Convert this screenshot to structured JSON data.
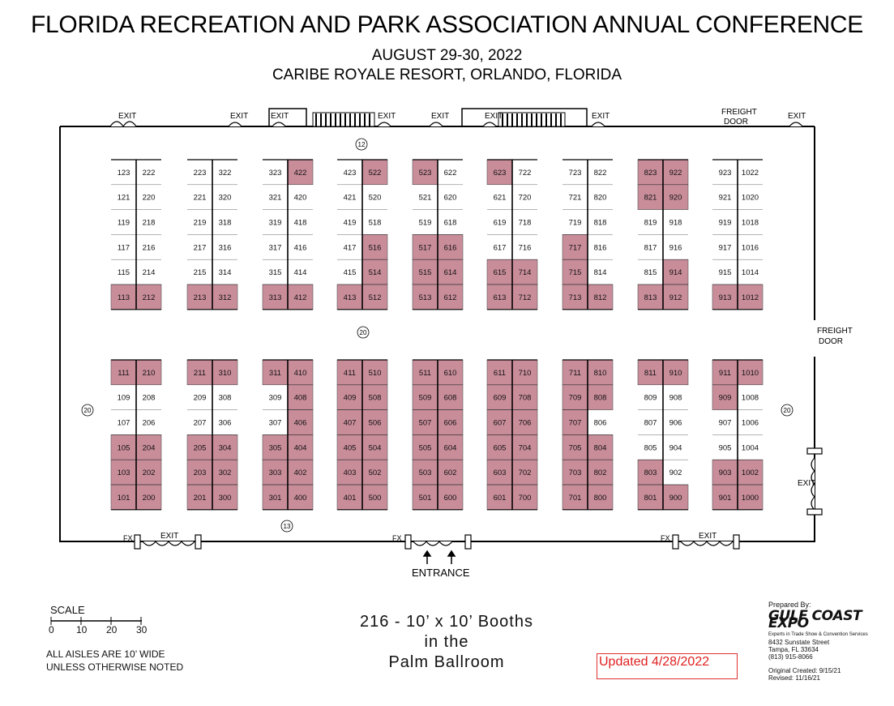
{
  "header": {
    "title": "FLORIDA RECREATION AND PARK ASSOCIATION ANNUAL CONFERENCE",
    "date": "AUGUST 29-30, 2022",
    "venue": "CARIBE ROYALE RESORT, ORLANDO, FLORIDA"
  },
  "colors": {
    "sold": "#c98d9a",
    "wall": "#000000"
  },
  "labels": {
    "exit": "EXIT",
    "freight_door": "FREIGHT DOOR",
    "freight_door_top": "FREIGHT",
    "freight_door_bottom": "DOOR",
    "fx": "FX",
    "entrance": "ENTRANCE",
    "aisle_12": "12",
    "aisle_20": "20",
    "aisle_13": "13"
  },
  "booths": [
    {
      "num": "123",
      "sold": false
    },
    {
      "num": "222",
      "sold": false
    },
    {
      "num": "121",
      "sold": false
    },
    {
      "num": "220",
      "sold": false
    },
    {
      "num": "119",
      "sold": false
    },
    {
      "num": "218",
      "sold": false
    },
    {
      "num": "117",
      "sold": false
    },
    {
      "num": "216",
      "sold": false
    },
    {
      "num": "115",
      "sold": false
    },
    {
      "num": "214",
      "sold": false
    },
    {
      "num": "113",
      "sold": true
    },
    {
      "num": "212",
      "sold": true
    },
    {
      "num": "223",
      "sold": false
    },
    {
      "num": "322",
      "sold": false
    },
    {
      "num": "221",
      "sold": false
    },
    {
      "num": "320",
      "sold": false
    },
    {
      "num": "219",
      "sold": false
    },
    {
      "num": "318",
      "sold": false
    },
    {
      "num": "217",
      "sold": false
    },
    {
      "num": "316",
      "sold": false
    },
    {
      "num": "215",
      "sold": false
    },
    {
      "num": "314",
      "sold": false
    },
    {
      "num": "213",
      "sold": true
    },
    {
      "num": "312",
      "sold": true
    },
    {
      "num": "323",
      "sold": false
    },
    {
      "num": "422",
      "sold": true
    },
    {
      "num": "321",
      "sold": false
    },
    {
      "num": "420",
      "sold": false
    },
    {
      "num": "319",
      "sold": false
    },
    {
      "num": "418",
      "sold": false
    },
    {
      "num": "317",
      "sold": false
    },
    {
      "num": "416",
      "sold": false
    },
    {
      "num": "315",
      "sold": false
    },
    {
      "num": "414",
      "sold": false
    },
    {
      "num": "313",
      "sold": true
    },
    {
      "num": "412",
      "sold": true
    },
    {
      "num": "423",
      "sold": false
    },
    {
      "num": "522",
      "sold": true
    },
    {
      "num": "421",
      "sold": false
    },
    {
      "num": "520",
      "sold": false
    },
    {
      "num": "419",
      "sold": false
    },
    {
      "num": "518",
      "sold": false
    },
    {
      "num": "417",
      "sold": false
    },
    {
      "num": "516",
      "sold": true
    },
    {
      "num": "415",
      "sold": false
    },
    {
      "num": "514",
      "sold": true
    },
    {
      "num": "413",
      "sold": true
    },
    {
      "num": "512",
      "sold": true
    },
    {
      "num": "523",
      "sold": true
    },
    {
      "num": "622",
      "sold": false
    },
    {
      "num": "521",
      "sold": false
    },
    {
      "num": "620",
      "sold": false
    },
    {
      "num": "519",
      "sold": false
    },
    {
      "num": "618",
      "sold": false
    },
    {
      "num": "517",
      "sold": true
    },
    {
      "num": "616",
      "sold": true
    },
    {
      "num": "515",
      "sold": true
    },
    {
      "num": "614",
      "sold": true
    },
    {
      "num": "513",
      "sold": true
    },
    {
      "num": "612",
      "sold": true
    },
    {
      "num": "623",
      "sold": true
    },
    {
      "num": "722",
      "sold": false
    },
    {
      "num": "621",
      "sold": false
    },
    {
      "num": "720",
      "sold": false
    },
    {
      "num": "619",
      "sold": false
    },
    {
      "num": "718",
      "sold": false
    },
    {
      "num": "617",
      "sold": false
    },
    {
      "num": "716",
      "sold": false
    },
    {
      "num": "615",
      "sold": true
    },
    {
      "num": "714",
      "sold": true
    },
    {
      "num": "613",
      "sold": true
    },
    {
      "num": "712",
      "sold": true
    },
    {
      "num": "723",
      "sold": false
    },
    {
      "num": "822",
      "sold": false
    },
    {
      "num": "721",
      "sold": false
    },
    {
      "num": "820",
      "sold": false
    },
    {
      "num": "719",
      "sold": false
    },
    {
      "num": "818",
      "sold": false
    },
    {
      "num": "717",
      "sold": true
    },
    {
      "num": "816",
      "sold": false
    },
    {
      "num": "715",
      "sold": true
    },
    {
      "num": "814",
      "sold": false
    },
    {
      "num": "713",
      "sold": true
    },
    {
      "num": "812",
      "sold": true
    },
    {
      "num": "823",
      "sold": true
    },
    {
      "num": "922",
      "sold": true
    },
    {
      "num": "821",
      "sold": true
    },
    {
      "num": "920",
      "sold": true
    },
    {
      "num": "819",
      "sold": false
    },
    {
      "num": "918",
      "sold": false
    },
    {
      "num": "817",
      "sold": false
    },
    {
      "num": "916",
      "sold": false
    },
    {
      "num": "815",
      "sold": false
    },
    {
      "num": "914",
      "sold": true
    },
    {
      "num": "813",
      "sold": true
    },
    {
      "num": "912",
      "sold": true
    },
    {
      "num": "923",
      "sold": false
    },
    {
      "num": "1022",
      "sold": false
    },
    {
      "num": "921",
      "sold": false
    },
    {
      "num": "1020",
      "sold": false
    },
    {
      "num": "919",
      "sold": false
    },
    {
      "num": "1018",
      "sold": false
    },
    {
      "num": "917",
      "sold": false
    },
    {
      "num": "1016",
      "sold": false
    },
    {
      "num": "915",
      "sold": false
    },
    {
      "num": "1014",
      "sold": false
    },
    {
      "num": "913",
      "sold": true
    },
    {
      "num": "1012",
      "sold": true
    },
    {
      "num": "111",
      "sold": true
    },
    {
      "num": "210",
      "sold": true
    },
    {
      "num": "109",
      "sold": false
    },
    {
      "num": "208",
      "sold": false
    },
    {
      "num": "107",
      "sold": false
    },
    {
      "num": "206",
      "sold": false
    },
    {
      "num": "105",
      "sold": true
    },
    {
      "num": "204",
      "sold": true
    },
    {
      "num": "103",
      "sold": true
    },
    {
      "num": "202",
      "sold": true
    },
    {
      "num": "101",
      "sold": true
    },
    {
      "num": "200",
      "sold": true
    },
    {
      "num": "211",
      "sold": true
    },
    {
      "num": "310",
      "sold": true
    },
    {
      "num": "209",
      "sold": false
    },
    {
      "num": "308",
      "sold": false
    },
    {
      "num": "207",
      "sold": false
    },
    {
      "num": "306",
      "sold": false
    },
    {
      "num": "205",
      "sold": true
    },
    {
      "num": "304",
      "sold": true
    },
    {
      "num": "203",
      "sold": true
    },
    {
      "num": "302",
      "sold": true
    },
    {
      "num": "201",
      "sold": true
    },
    {
      "num": "300",
      "sold": true
    },
    {
      "num": "311",
      "sold": true
    },
    {
      "num": "410",
      "sold": true
    },
    {
      "num": "309",
      "sold": false
    },
    {
      "num": "408",
      "sold": true
    },
    {
      "num": "307",
      "sold": false
    },
    {
      "num": "406",
      "sold": true
    },
    {
      "num": "305",
      "sold": true
    },
    {
      "num": "404",
      "sold": true
    },
    {
      "num": "303",
      "sold": true
    },
    {
      "num": "402",
      "sold": true
    },
    {
      "num": "301",
      "sold": true
    },
    {
      "num": "400",
      "sold": true
    },
    {
      "num": "411",
      "sold": true
    },
    {
      "num": "510",
      "sold": true
    },
    {
      "num": "409",
      "sold": true
    },
    {
      "num": "508",
      "sold": true
    },
    {
      "num": "407",
      "sold": true
    },
    {
      "num": "506",
      "sold": true
    },
    {
      "num": "405",
      "sold": true
    },
    {
      "num": "504",
      "sold": true
    },
    {
      "num": "403",
      "sold": true
    },
    {
      "num": "502",
      "sold": true
    },
    {
      "num": "401",
      "sold": true
    },
    {
      "num": "500",
      "sold": true
    },
    {
      "num": "511",
      "sold": true
    },
    {
      "num": "610",
      "sold": true
    },
    {
      "num": "509",
      "sold": true
    },
    {
      "num": "608",
      "sold": true
    },
    {
      "num": "507",
      "sold": true
    },
    {
      "num": "606",
      "sold": true
    },
    {
      "num": "505",
      "sold": true
    },
    {
      "num": "604",
      "sold": true
    },
    {
      "num": "503",
      "sold": true
    },
    {
      "num": "602",
      "sold": true
    },
    {
      "num": "501",
      "sold": true
    },
    {
      "num": "600",
      "sold": true
    },
    {
      "num": "611",
      "sold": true
    },
    {
      "num": "710",
      "sold": true
    },
    {
      "num": "609",
      "sold": true
    },
    {
      "num": "708",
      "sold": true
    },
    {
      "num": "607",
      "sold": true
    },
    {
      "num": "706",
      "sold": true
    },
    {
      "num": "605",
      "sold": true
    },
    {
      "num": "704",
      "sold": true
    },
    {
      "num": "603",
      "sold": true
    },
    {
      "num": "702",
      "sold": true
    },
    {
      "num": "601",
      "sold": true
    },
    {
      "num": "700",
      "sold": true
    },
    {
      "num": "711",
      "sold": true
    },
    {
      "num": "810",
      "sold": true
    },
    {
      "num": "709",
      "sold": true
    },
    {
      "num": "808",
      "sold": true
    },
    {
      "num": "707",
      "sold": true
    },
    {
      "num": "806",
      "sold": false
    },
    {
      "num": "705",
      "sold": true
    },
    {
      "num": "804",
      "sold": true
    },
    {
      "num": "703",
      "sold": true
    },
    {
      "num": "802",
      "sold": true
    },
    {
      "num": "701",
      "sold": true
    },
    {
      "num": "800",
      "sold": true
    },
    {
      "num": "811",
      "sold": true
    },
    {
      "num": "910",
      "sold": true
    },
    {
      "num": "809",
      "sold": false
    },
    {
      "num": "908",
      "sold": false
    },
    {
      "num": "807",
      "sold": false
    },
    {
      "num": "906",
      "sold": false
    },
    {
      "num": "805",
      "sold": false
    },
    {
      "num": "904",
      "sold": false
    },
    {
      "num": "803",
      "sold": true
    },
    {
      "num": "902",
      "sold": false
    },
    {
      "num": "801",
      "sold": true
    },
    {
      "num": "900",
      "sold": true
    },
    {
      "num": "911",
      "sold": true
    },
    {
      "num": "1010",
      "sold": true
    },
    {
      "num": "909",
      "sold": true
    },
    {
      "num": "1008",
      "sold": false
    },
    {
      "num": "907",
      "sold": false
    },
    {
      "num": "1006",
      "sold": false
    },
    {
      "num": "905",
      "sold": false
    },
    {
      "num": "1004",
      "sold": false
    },
    {
      "num": "903",
      "sold": true
    },
    {
      "num": "1002",
      "sold": true
    },
    {
      "num": "901",
      "sold": true
    },
    {
      "num": "1000",
      "sold": true
    }
  ],
  "scale": {
    "title": "SCALE",
    "ticks": [
      "0",
      "10",
      "20",
      "30"
    ]
  },
  "notes": {
    "aisles_line1": "ALL AISLES ARE 10’ WIDE",
    "aisles_line2": "UNLESS OTHERWISE NOTED"
  },
  "caption": {
    "line1": "216 - 10’ x 10’ Booths",
    "line2": "in the",
    "line3": "Palm Ballroom"
  },
  "updated": "Updated 4/28/2022",
  "gulf_coast": {
    "prepared_by": "Prepared By:",
    "logo": "GULF COAST EXPO",
    "tagline": "Experts in Trade Show & Convention Services",
    "street": "8432 Sunstate Street",
    "city": "Tampa, FL 33634",
    "phone": "(813) 915-8066",
    "created": "Original Created: 9/15/21",
    "revised": "Revised: 11/16/21"
  }
}
